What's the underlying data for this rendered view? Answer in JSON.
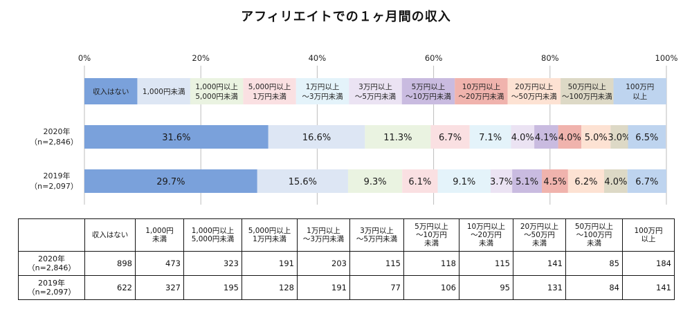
{
  "title": "アフィリエイトでの１ヶ月間の収入",
  "chart_data": {
    "type": "bar",
    "orientation": "horizontal-stacked-100",
    "title": "アフィリエイトでの１ヶ月間の収入",
    "xlim": [
      0,
      100
    ],
    "x_ticks": [
      "0%",
      "20%",
      "40%",
      "60%",
      "80%",
      "100%"
    ],
    "grid": "vertical",
    "legend_position": "top",
    "categories": [
      [
        "収入はない"
      ],
      [
        "1,000円未満"
      ],
      [
        "1,000円以上",
        "5,000円未満"
      ],
      [
        "5,000円以上",
        "1万円未満"
      ],
      [
        "1万円以上",
        "～3万円未満"
      ],
      [
        "3万円以上",
        "～5万円未満"
      ],
      [
        "5万円以上",
        "～10万円未満"
      ],
      [
        "10万円以上",
        "～20万円未満"
      ],
      [
        "20万円以上",
        "～50万円未満"
      ],
      [
        "50万円以上",
        "～100万円未満"
      ],
      [
        "100万円",
        "以上"
      ]
    ],
    "colors": [
      "#7aa1db",
      "#dde6f4",
      "#eaf3e1",
      "#fae0e2",
      "#e4f3fa",
      "#ebe3f3",
      "#c9bbe0",
      "#f0b3ad",
      "#fde2d3",
      "#ddd9c6",
      "#bed4ef"
    ],
    "series": [
      {
        "name": "2020年",
        "sublabel": "（n=2,846）",
        "values": [
          31.6,
          16.6,
          11.3,
          6.7,
          7.1,
          4.0,
          4.1,
          4.0,
          5.0,
          3.0,
          6.5
        ],
        "labels": [
          "31.6%",
          "16.6%",
          "11.3%",
          "6.7%",
          "7.1%",
          "4.0%",
          "4.1%",
          "4.0%",
          "5.0%",
          "3.0%",
          "6.5%"
        ]
      },
      {
        "name": "2019年",
        "sublabel": "（n=2,097）",
        "values": [
          29.7,
          15.6,
          9.3,
          6.1,
          9.1,
          3.7,
          5.1,
          4.5,
          6.2,
          4.0,
          6.7
        ],
        "labels": [
          "29.7%",
          "15.6%",
          "9.3%",
          "6.1%",
          "9.1%",
          "3.7%",
          "5.1%",
          "4.5%",
          "6.2%",
          "4.0%",
          "6.7%"
        ]
      }
    ]
  },
  "table": {
    "headers": [
      "収入はない",
      "1,000円\n未満",
      "1,000円以上\n5,000円未満",
      "5,000円以上\n1万円未満",
      "1万円以上\n～3万円未満",
      "3万円以上\n～5万円未満",
      "5万円以上\n～10万円\n未満",
      "10万円以上\n～20万円\n未満",
      "20万円以上\n～50万円\n未満",
      "50万円以上\n～100万円\n未満",
      "100万円\n以上"
    ],
    "rows": [
      {
        "label": "2020年\n（n=2,846）",
        "values": [
          "898",
          "473",
          "323",
          "191",
          "203",
          "115",
          "118",
          "115",
          "141",
          "85",
          "184"
        ]
      },
      {
        "label": "2019年\n（n=2,097）",
        "values": [
          "622",
          "327",
          "195",
          "128",
          "191",
          "77",
          "106",
          "95",
          "131",
          "84",
          "141"
        ]
      }
    ]
  }
}
